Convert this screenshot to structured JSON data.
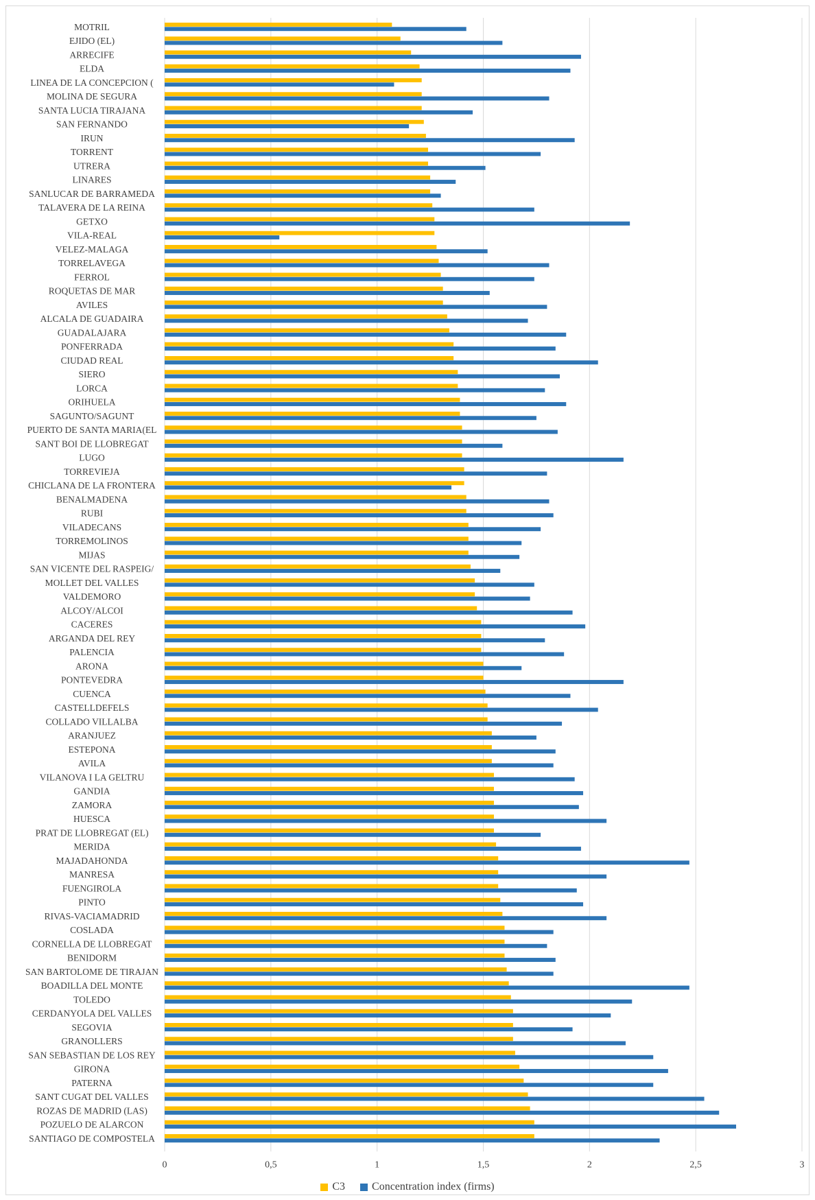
{
  "chart_data": {
    "type": "bar",
    "orientation": "horizontal",
    "title": "",
    "xlabel": "",
    "ylabel": "",
    "xlim": [
      0,
      3
    ],
    "xticks": [
      "0",
      "0,5",
      "1",
      "1,5",
      "2",
      "2,5",
      "3"
    ],
    "grid": true,
    "legend_position": "bottom",
    "categories": [
      "MOTRIL",
      "EJIDO (EL)",
      "ARRECIFE",
      "ELDA",
      "LINEA DE LA CONCEPCION (",
      "MOLINA DE SEGURA",
      "SANTA LUCIA TIRAJANA",
      "SAN FERNANDO",
      "IRUN",
      "TORRENT",
      "UTRERA",
      "LINARES",
      "SANLUCAR DE BARRAMEDA",
      "TALAVERA DE LA REINA",
      "GETXO",
      "VILA-REAL",
      "VELEZ-MALAGA",
      "TORRELAVEGA",
      "FERROL",
      "ROQUETAS DE MAR",
      "AVILES",
      "ALCALA DE GUADAIRA",
      "GUADALAJARA",
      "PONFERRADA",
      "CIUDAD REAL",
      "SIERO",
      "LORCA",
      "ORIHUELA",
      "SAGUNTO/SAGUNT",
      "PUERTO DE SANTA MARIA(EL",
      "SANT BOI DE LLOBREGAT",
      "LUGO",
      "TORREVIEJA",
      "CHICLANA DE LA FRONTERA",
      "BENALMADENA",
      "RUBI",
      "VILADECANS",
      "TORREMOLINOS",
      "MIJAS",
      "SAN VICENTE DEL RASPEIG/",
      "MOLLET DEL VALLES",
      "VALDEMORO",
      "ALCOY/ALCOI",
      "CACERES",
      "ARGANDA DEL REY",
      "PALENCIA",
      "ARONA",
      "PONTEVEDRA",
      "CUENCA",
      "CASTELLDEFELS",
      "COLLADO VILLALBA",
      "ARANJUEZ",
      "ESTEPONA",
      "AVILA",
      "VILANOVA I LA GELTRU",
      "GANDIA",
      "ZAMORA",
      "HUESCA",
      "PRAT DE LLOBREGAT (EL)",
      "MERIDA",
      "MAJADAHONDA",
      "MANRESA",
      "FUENGIROLA",
      "PINTO",
      "RIVAS-VACIAMADRID",
      "COSLADA",
      "CORNELLA DE LLOBREGAT",
      "BENIDORM",
      "SAN BARTOLOME DE TIRAJAN",
      "BOADILLA DEL MONTE",
      "TOLEDO",
      "CERDANYOLA DEL VALLES",
      "SEGOVIA",
      "GRANOLLERS",
      "SAN SEBASTIAN DE LOS REY",
      "GIRONA",
      "PATERNA",
      "SANT CUGAT DEL VALLES",
      "ROZAS DE MADRID (LAS)",
      "POZUELO DE ALARCON",
      "SANTIAGO DE COMPOSTELA"
    ],
    "series": [
      {
        "name": "C3",
        "color": "#FFC000",
        "values": [
          1.07,
          1.11,
          1.16,
          1.2,
          1.21,
          1.21,
          1.21,
          1.22,
          1.23,
          1.24,
          1.24,
          1.25,
          1.25,
          1.26,
          1.27,
          1.27,
          1.28,
          1.29,
          1.3,
          1.31,
          1.31,
          1.33,
          1.34,
          1.36,
          1.36,
          1.38,
          1.38,
          1.39,
          1.39,
          1.4,
          1.4,
          1.4,
          1.41,
          1.41,
          1.42,
          1.42,
          1.43,
          1.43,
          1.43,
          1.44,
          1.46,
          1.46,
          1.47,
          1.49,
          1.49,
          1.49,
          1.5,
          1.5,
          1.51,
          1.52,
          1.52,
          1.54,
          1.54,
          1.54,
          1.55,
          1.55,
          1.55,
          1.55,
          1.55,
          1.56,
          1.57,
          1.57,
          1.57,
          1.58,
          1.59,
          1.6,
          1.6,
          1.6,
          1.61,
          1.62,
          1.63,
          1.64,
          1.64,
          1.64,
          1.65,
          1.67,
          1.69,
          1.71,
          1.72,
          1.74,
          1.74
        ]
      },
      {
        "name": "Concentration index (firms)",
        "color": "#2E75B6",
        "values": [
          1.42,
          1.59,
          1.96,
          1.91,
          1.08,
          1.81,
          1.45,
          1.15,
          1.93,
          1.77,
          1.51,
          1.37,
          1.3,
          1.74,
          2.19,
          0.54,
          1.52,
          1.81,
          1.74,
          1.53,
          1.8,
          1.71,
          1.89,
          1.84,
          2.04,
          1.86,
          1.79,
          1.89,
          1.75,
          1.85,
          1.59,
          2.16,
          1.8,
          1.35,
          1.81,
          1.83,
          1.77,
          1.68,
          1.67,
          1.58,
          1.74,
          1.72,
          1.92,
          1.98,
          1.79,
          1.88,
          1.68,
          2.16,
          1.91,
          2.04,
          1.87,
          1.75,
          1.84,
          1.83,
          1.93,
          1.97,
          1.95,
          2.08,
          1.77,
          1.96,
          2.47,
          2.08,
          1.94,
          1.97,
          2.08,
          1.83,
          1.8,
          1.84,
          1.83,
          2.47,
          2.2,
          2.1,
          1.92,
          2.17,
          2.3,
          2.37,
          2.3,
          2.54,
          2.61,
          2.69,
          2.33
        ]
      }
    ]
  }
}
